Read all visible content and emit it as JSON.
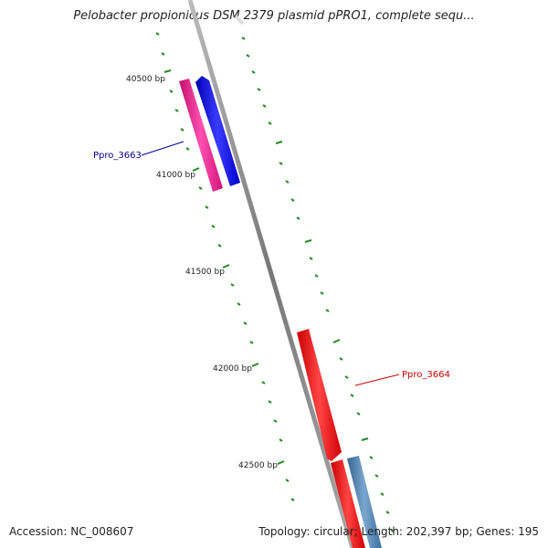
{
  "header": {
    "title": "Pelobacter propionicus DSM 2379 plasmid pPRO1, complete sequ..."
  },
  "footer": {
    "accession": "Accession: NC_008607",
    "summary": "Topology: circular; Length: 202,397 bp; Genes: 195"
  },
  "ruler": {
    "labels": [
      "40500 bp",
      "41000 bp",
      "41500 bp",
      "42000 bp",
      "42500 bp"
    ]
  },
  "genes": [
    {
      "name": "Ppro_3663",
      "label_color": "#00008b"
    },
    {
      "name": "Ppro_3664",
      "label_color": "#cc0000"
    }
  ],
  "colors": {
    "backbone": "#888888",
    "tick": "#228b22",
    "gene_pink": "#ff1493",
    "gene_blue": "#0000ff",
    "gene_red": "#ff0000",
    "gene_steelblue": "#4682b4"
  }
}
